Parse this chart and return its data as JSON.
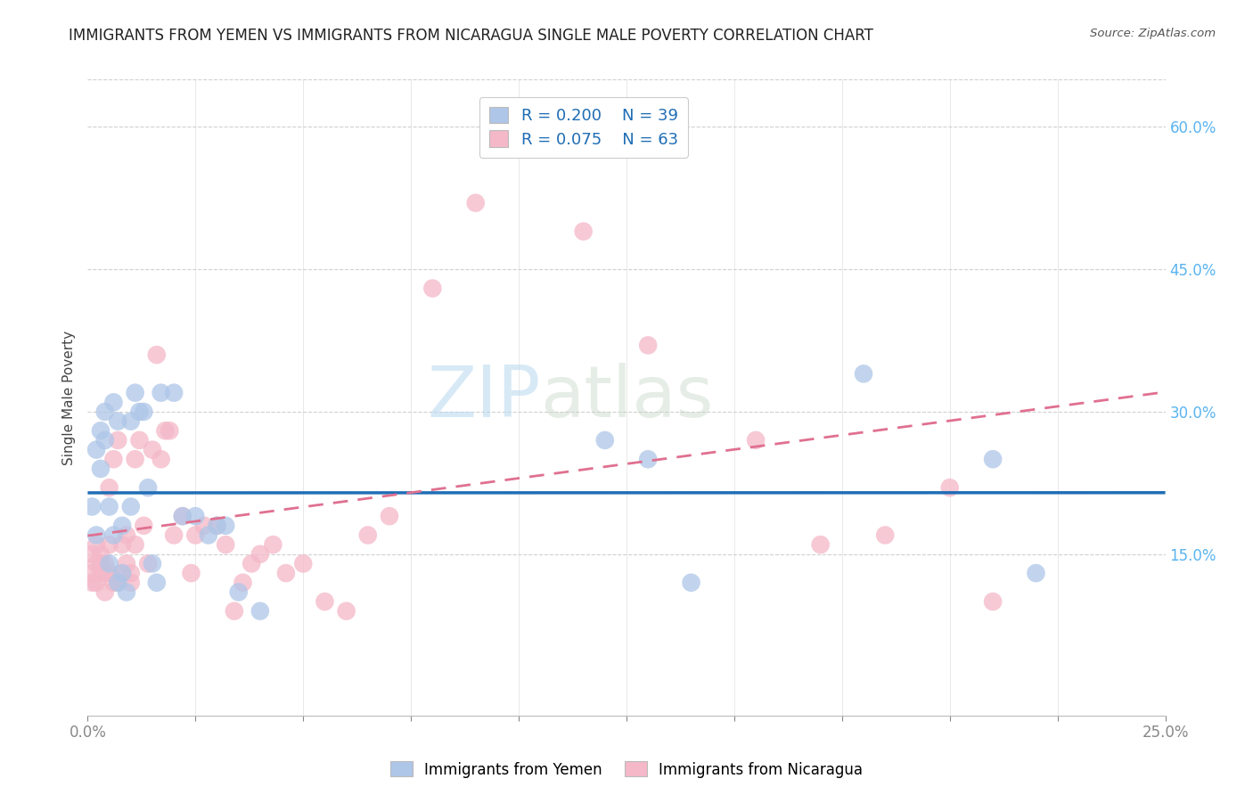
{
  "title": "IMMIGRANTS FROM YEMEN VS IMMIGRANTS FROM NICARAGUA SINGLE MALE POVERTY CORRELATION CHART",
  "source": "Source: ZipAtlas.com",
  "ylabel": "Single Male Poverty",
  "x_min": 0.0,
  "x_max": 0.25,
  "y_min": -0.02,
  "y_max": 0.65,
  "right_yticks": [
    0.15,
    0.3,
    0.45,
    0.6
  ],
  "right_yticklabels": [
    "15.0%",
    "30.0%",
    "45.0%",
    "60.0%"
  ],
  "xtick_positions": [
    0.0,
    0.025,
    0.05,
    0.075,
    0.1,
    0.125,
    0.15,
    0.175,
    0.2,
    0.225,
    0.25
  ],
  "legend_r1": "R = 0.200",
  "legend_n1": "N = 39",
  "legend_r2": "R = 0.075",
  "legend_n2": "N = 63",
  "color_yemen": "#aec6e8",
  "color_nicaragua": "#f4b8c8",
  "color_line_yemen": "#1f6db5",
  "color_line_nicaragua": "#e07090",
  "color_axis_right": "#5ab4f0",
  "color_axis_bottom": "#5ab4f0",
  "watermark_zip": "ZIP",
  "watermark_atlas": "atlas",
  "yemen_x": [
    0.001,
    0.002,
    0.002,
    0.003,
    0.003,
    0.004,
    0.004,
    0.005,
    0.005,
    0.006,
    0.006,
    0.007,
    0.007,
    0.008,
    0.008,
    0.009,
    0.01,
    0.01,
    0.011,
    0.012,
    0.013,
    0.014,
    0.015,
    0.016,
    0.017,
    0.02,
    0.022,
    0.025,
    0.028,
    0.03,
    0.032,
    0.035,
    0.04,
    0.12,
    0.13,
    0.14,
    0.18,
    0.21,
    0.22
  ],
  "yemen_y": [
    0.2,
    0.26,
    0.17,
    0.28,
    0.24,
    0.3,
    0.27,
    0.14,
    0.2,
    0.31,
    0.17,
    0.29,
    0.12,
    0.13,
    0.18,
    0.11,
    0.29,
    0.2,
    0.32,
    0.3,
    0.3,
    0.22,
    0.14,
    0.12,
    0.32,
    0.32,
    0.19,
    0.19,
    0.17,
    0.18,
    0.18,
    0.11,
    0.09,
    0.27,
    0.25,
    0.12,
    0.34,
    0.25,
    0.13
  ],
  "nicaragua_x": [
    0.001,
    0.001,
    0.001,
    0.002,
    0.002,
    0.002,
    0.003,
    0.003,
    0.003,
    0.004,
    0.004,
    0.004,
    0.005,
    0.005,
    0.005,
    0.006,
    0.006,
    0.007,
    0.007,
    0.008,
    0.008,
    0.009,
    0.009,
    0.01,
    0.01,
    0.011,
    0.011,
    0.012,
    0.013,
    0.014,
    0.015,
    0.016,
    0.017,
    0.018,
    0.019,
    0.02,
    0.022,
    0.024,
    0.025,
    0.027,
    0.03,
    0.032,
    0.034,
    0.036,
    0.038,
    0.04,
    0.043,
    0.046,
    0.05,
    0.055,
    0.06,
    0.065,
    0.07,
    0.08,
    0.09,
    0.1,
    0.115,
    0.13,
    0.155,
    0.17,
    0.185,
    0.2,
    0.21
  ],
  "nicaragua_y": [
    0.13,
    0.15,
    0.12,
    0.14,
    0.12,
    0.16,
    0.13,
    0.15,
    0.14,
    0.13,
    0.11,
    0.14,
    0.13,
    0.22,
    0.16,
    0.12,
    0.25,
    0.27,
    0.12,
    0.13,
    0.16,
    0.17,
    0.14,
    0.12,
    0.13,
    0.16,
    0.25,
    0.27,
    0.18,
    0.14,
    0.26,
    0.36,
    0.25,
    0.28,
    0.28,
    0.17,
    0.19,
    0.13,
    0.17,
    0.18,
    0.18,
    0.16,
    0.09,
    0.12,
    0.14,
    0.15,
    0.16,
    0.13,
    0.14,
    0.1,
    0.09,
    0.17,
    0.19,
    0.43,
    0.52,
    0.58,
    0.49,
    0.37,
    0.27,
    0.16,
    0.17,
    0.22,
    0.1
  ]
}
